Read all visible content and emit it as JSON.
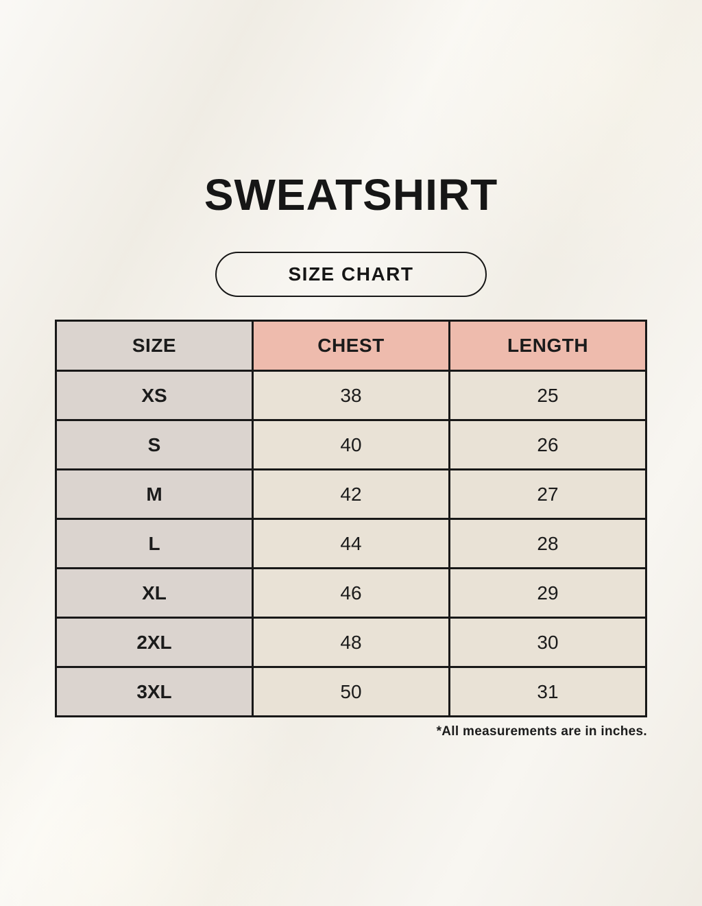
{
  "page": {
    "title": "SWEATSHIRT",
    "size_chart_button_label": "SIZE CHART",
    "footnote": "*All measurements are in inches."
  },
  "chart_data": {
    "type": "table",
    "title": "SWEATSHIRT SIZE CHART",
    "columns": [
      "SIZE",
      "CHEST",
      "LENGTH"
    ],
    "rows": [
      [
        "XS",
        "38",
        "25"
      ],
      [
        "S",
        "40",
        "26"
      ],
      [
        "M",
        "42",
        "27"
      ],
      [
        "L",
        "44",
        "28"
      ],
      [
        "XL",
        "46",
        "29"
      ],
      [
        "2XL",
        "48",
        "30"
      ],
      [
        "3XL",
        "50",
        "31"
      ]
    ],
    "units": "inches"
  },
  "colors": {
    "background": "#f4f1ea",
    "text": "#1b1b1b",
    "header_accent": "#eebbad",
    "size_column": "#dbd4cf",
    "data_cell": "#e9e2d6",
    "border": "#181818"
  }
}
